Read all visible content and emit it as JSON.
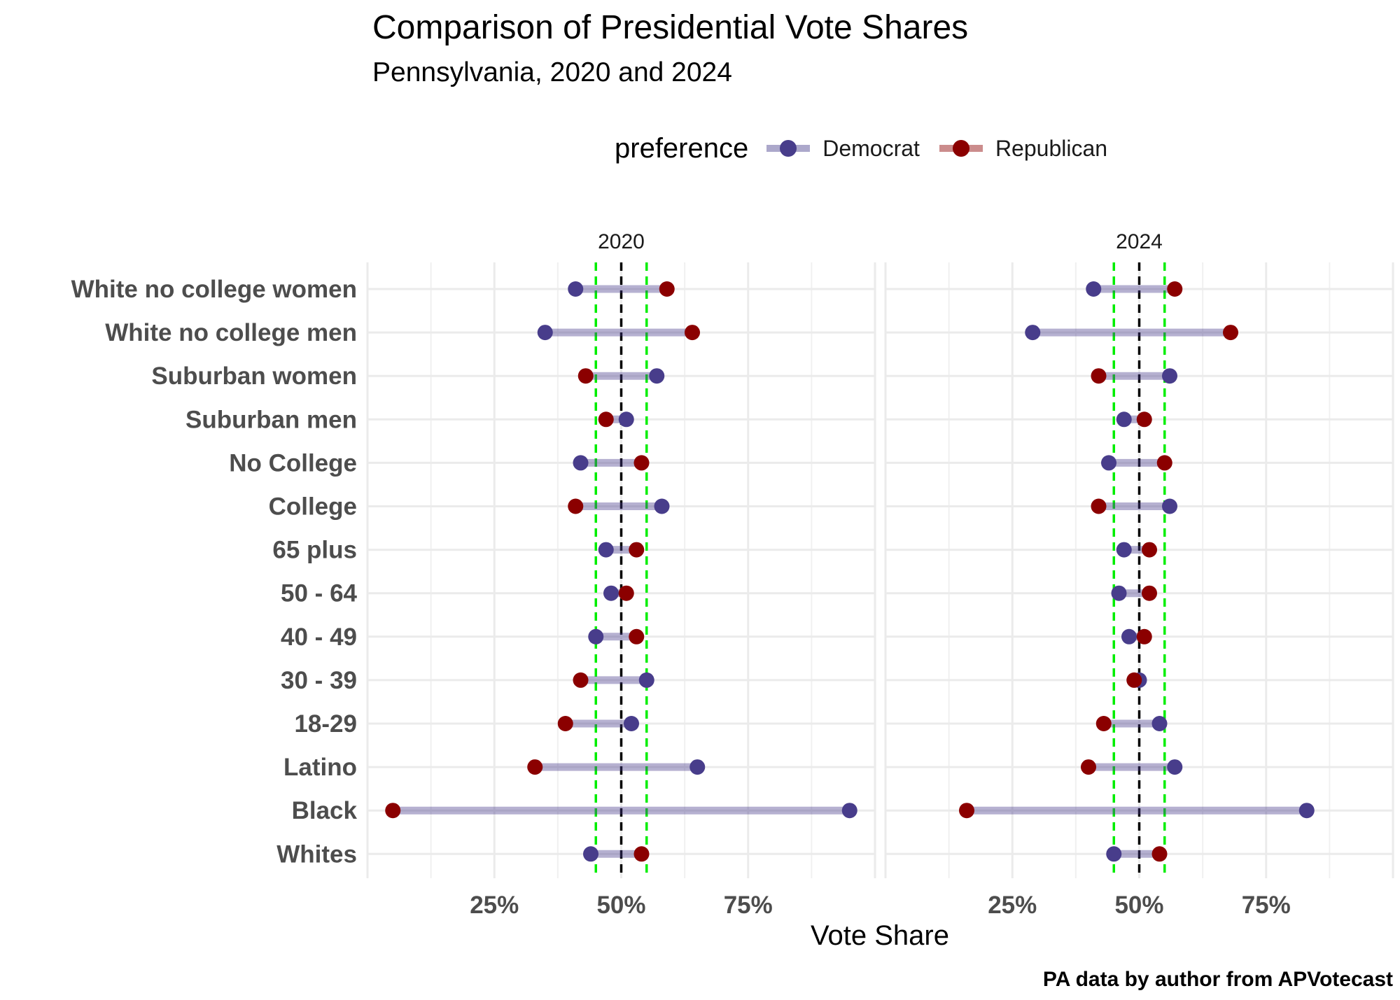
{
  "title": "Comparison of Presidential Vote Shares",
  "subtitle": "Pennsylvania, 2020 and 2024",
  "legend": {
    "title": "preference",
    "items": [
      {
        "label": "Democrat",
        "color": "#483D8B"
      },
      {
        "label": "Republican",
        "color": "#8B0000"
      }
    ]
  },
  "caption": "PA data by author from APVotecast",
  "chart_data": {
    "type": "dumbbell",
    "xlabel": "Vote Share",
    "xlim": [
      0,
      100
    ],
    "x_ticks": [
      25,
      50,
      75
    ],
    "x_tick_labels": [
      "25%",
      "50%",
      "75%"
    ],
    "reference_lines": {
      "center": 50,
      "bands": [
        45,
        55
      ]
    },
    "categories": [
      "White no college women",
      "White no college men",
      "Suburban women",
      "Suburban men",
      "No College",
      "College",
      "65 plus",
      "50 - 64",
      "40 - 49",
      "30 - 39",
      "18-29",
      "Latino",
      "Black",
      "Whites"
    ],
    "facets": [
      {
        "label": "2020",
        "democrat": [
          41,
          35,
          57,
          51,
          42,
          58,
          47,
          48,
          45,
          55,
          52,
          65,
          95,
          44
        ],
        "republican": [
          59,
          64,
          43,
          47,
          54,
          41,
          53,
          51,
          53,
          42,
          39,
          33,
          5,
          54
        ]
      },
      {
        "label": "2024",
        "democrat": [
          41,
          29,
          56,
          47,
          44,
          56,
          47,
          46,
          48,
          50,
          54,
          57,
          83,
          45
        ],
        "republican": [
          57,
          68,
          42,
          51,
          55,
          42,
          52,
          52,
          51,
          49,
          43,
          40,
          16,
          54
        ]
      }
    ],
    "grid": true,
    "legend_position": "top"
  }
}
